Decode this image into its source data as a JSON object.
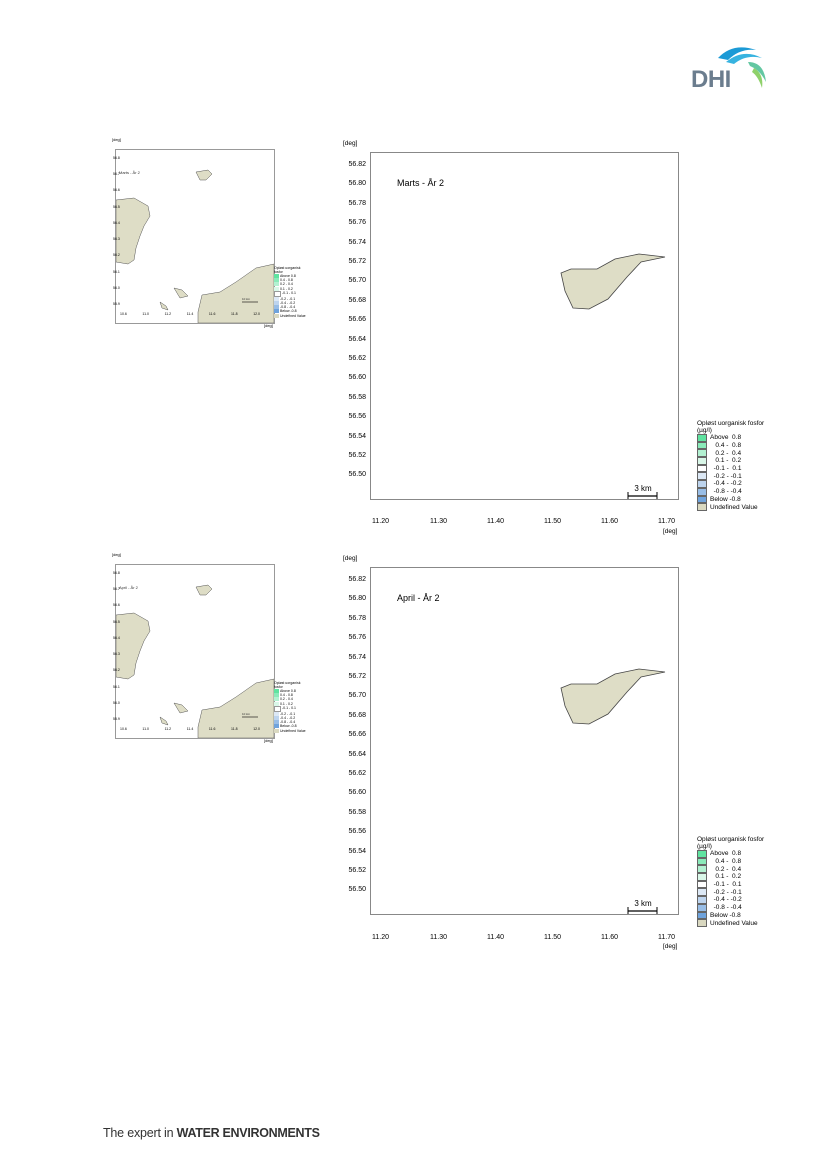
{
  "logo": {
    "text": "DHI",
    "name": "dhi-logo"
  },
  "footer": {
    "prefix": "The expert in ",
    "bold": "WATER ENVIRONMENTS"
  },
  "panels": [
    {
      "title": "Marts - År 2",
      "overview_title": "Marts - År 2",
      "overview_scale": "10 km",
      "scale_label": "3 km"
    },
    {
      "title": "April - År 2",
      "overview_title": "April - År 2",
      "overview_scale": "10 km",
      "scale_label": "3 km"
    }
  ],
  "axes": {
    "unit": "[deg]",
    "y_ticks": [
      "56.82",
      "56.80",
      "56.78",
      "56.76",
      "56.74",
      "56.72",
      "56.70",
      "56.68",
      "56.66",
      "56.64",
      "56.62",
      "56.60",
      "56.58",
      "56.56",
      "56.54",
      "56.52",
      "56.50"
    ],
    "x_ticks": [
      "11.20",
      "11.30",
      "11.40",
      "11.50",
      "11.60",
      "11.70"
    ],
    "overview_y_ticks": [
      "56.8",
      "56.7",
      "56.6",
      "56.5",
      "56.4",
      "56.3",
      "56.2",
      "56.1",
      "56.0",
      "55.9"
    ],
    "overview_x_ticks": [
      "10.6",
      "11.0",
      "11.2",
      "11.4",
      "11.6",
      "11.8",
      "12.0"
    ]
  },
  "legend": {
    "title_line1": "Opløst uorganisk fosfor",
    "title_line2": "(µg/l)",
    "items": [
      {
        "label": "Above  0.8",
        "color": "#5fe3a0"
      },
      {
        "label": "   0.4 -  0.8",
        "color": "#8aeab9"
      },
      {
        "label": "   0.2 -  0.4",
        "color": "#b2f1d1"
      },
      {
        "label": "   0.1 -  0.2",
        "color": "#d9f7e8"
      },
      {
        "label": "  -0.1 -  0.1",
        "color": "#ffffff"
      },
      {
        "label": "  -0.2 - -0.1",
        "color": "#dce8f5"
      },
      {
        "label": "  -0.4 - -0.2",
        "color": "#bdd4ee"
      },
      {
        "label": "  -0.8 - -0.4",
        "color": "#98bde6"
      },
      {
        "label": "Below -0.8",
        "color": "#6fa3dc"
      },
      {
        "label": "Undefined Value",
        "color": "#d9d8c0"
      }
    ]
  },
  "colors": {
    "land": "#deddc6",
    "land_stroke": "#444444"
  }
}
